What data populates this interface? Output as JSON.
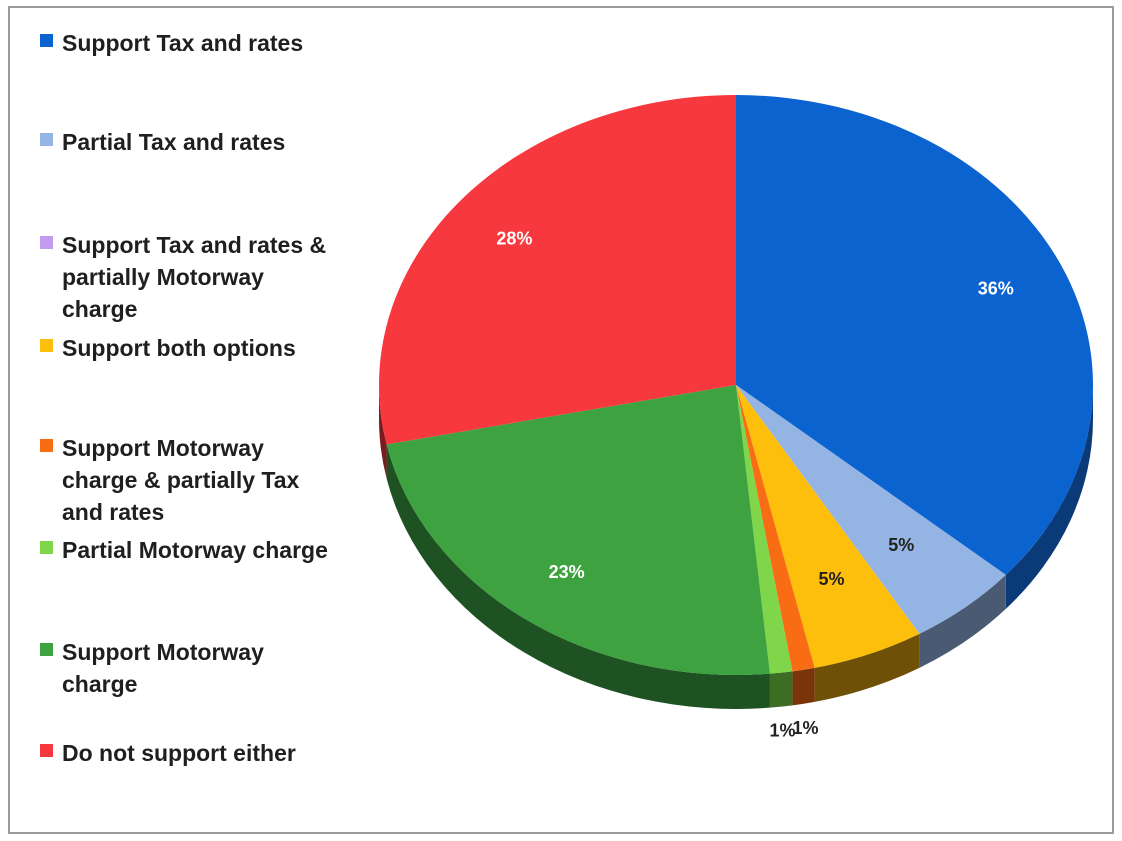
{
  "chart_data": {
    "type": "pie",
    "title": "",
    "legend_position": "left",
    "slices": [
      {
        "label": "Support Tax and rates",
        "value": 36,
        "value_label": "36%",
        "color": "#0b63cf",
        "shade": "#0a3a78"
      },
      {
        "label": "Partial Tax and rates",
        "value": 5,
        "value_label": "5%",
        "color": "#94b5e3",
        "shade": "#4a5a72"
      },
      {
        "label": "Support Tax and rates & partially Motorway charge",
        "value": 0,
        "value_label": "",
        "color": "#c39bf0",
        "shade": "#6a4e86"
      },
      {
        "label": "Support both options",
        "value": 5,
        "value_label": "5%",
        "color": "#fdbf0c",
        "shade": "#6e5106"
      },
      {
        "label": "Support Motorway charge & partially Tax and rates",
        "value": 1,
        "value_label": "1%",
        "color": "#f86d13",
        "shade": "#7a3409"
      },
      {
        "label": "Partial Motorway charge",
        "value": 1,
        "value_label": "1%",
        "color": "#7fd64a",
        "shade": "#3c6d22"
      },
      {
        "label": "Support Motorway charge",
        "value": 23,
        "value_label": "23%",
        "color": "#3da23f",
        "shade": "#1f5222"
      },
      {
        "label": "Do not support either",
        "value": 28,
        "value_label": "28%",
        "color": "#f8383f",
        "shade": "#7b1b1f"
      }
    ]
  },
  "legend": {
    "items": [
      {
        "label": "Support Tax and rates",
        "color": "#0b63cf"
      },
      {
        "label": "Partial Tax and rates",
        "color": "#94b5e3"
      },
      {
        "label": "Support Tax and rates &\npartially Motorway\ncharge",
        "color": "#c39bf0"
      },
      {
        "label": "Support both options",
        "color": "#fdbf0c"
      },
      {
        "label": "Support Motorway\ncharge & partially Tax\nand rates",
        "color": "#f86d13"
      },
      {
        "label": "Partial Motorway charge",
        "color": "#7fd64a"
      },
      {
        "label": "Support Motorway\ncharge",
        "color": "#3da23f"
      },
      {
        "label": "Do not support either",
        "color": "#f8383f"
      }
    ]
  }
}
